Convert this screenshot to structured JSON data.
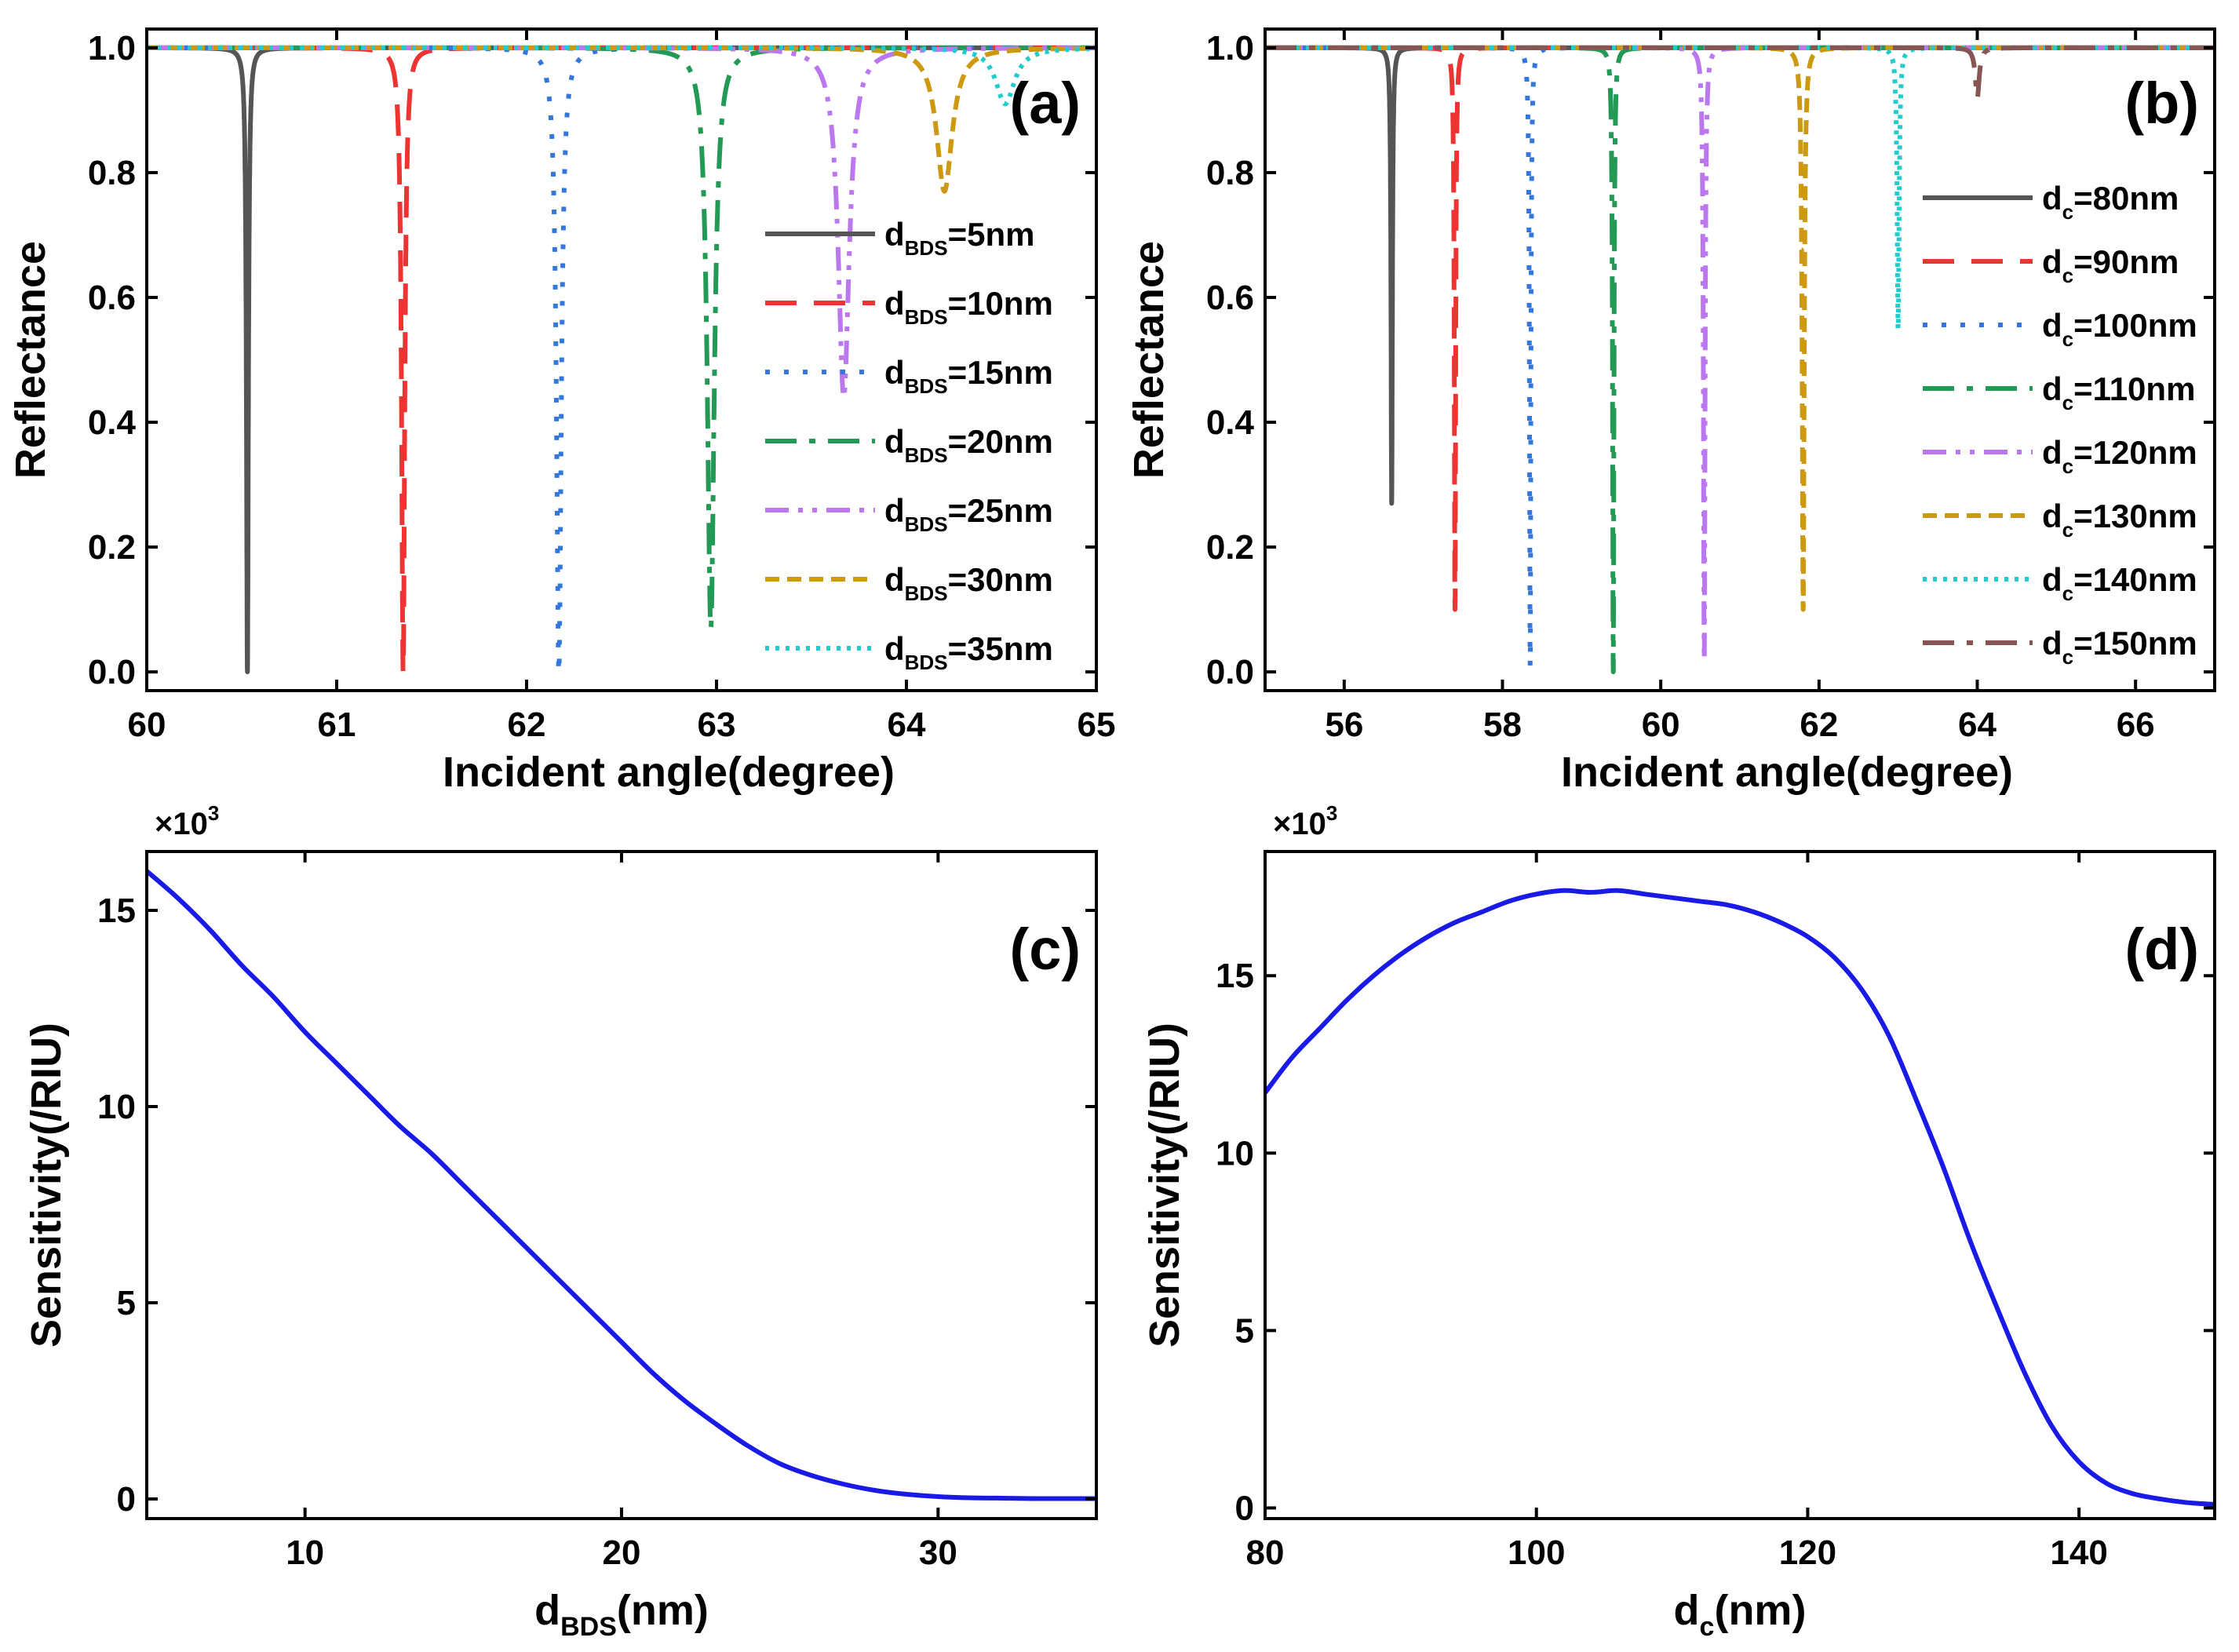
{
  "chart_data": [
    {
      "panel": "a",
      "type": "line",
      "panel_label": "(a)",
      "xlabel": "Incident angle(degree)",
      "ylabel": "Reflectance",
      "xlim": [
        60,
        65
      ],
      "ylim": [
        -0.03,
        1.03
      ],
      "xticks": [
        60,
        61,
        62,
        63,
        64,
        65
      ],
      "yticks": [
        0.0,
        0.2,
        0.4,
        0.6,
        0.8,
        1.0
      ],
      "xtick_labels": [
        "60",
        "61",
        "62",
        "63",
        "64",
        "65"
      ],
      "ytick_labels": [
        "0.0",
        "0.2",
        "0.4",
        "0.6",
        "0.8",
        "1.0"
      ],
      "legend_position": "right",
      "series": [
        {
          "name": "d_BDS=5nm",
          "label_main": "d",
          "label_sub": "BDS",
          "label_rest": "=5nm",
          "color": "#555555",
          "dash": "solid",
          "dip_center": 60.53,
          "dip_min": 0.0,
          "dip_width": 0.006
        },
        {
          "name": "d_BDS=10nm",
          "label_main": "d",
          "label_sub": "BDS",
          "label_rest": "=10nm",
          "color": "#ee3333",
          "dash": "dash",
          "dip_center": 61.35,
          "dip_min": 0.0,
          "dip_width": 0.01
        },
        {
          "name": "d_BDS=15nm",
          "label_main": "d",
          "label_sub": "BDS",
          "label_rest": "=15nm",
          "color": "#3377dd",
          "dash": "dot",
          "dip_center": 62.17,
          "dip_min": 0.0,
          "dip_width": 0.015
        },
        {
          "name": "d_BDS=20nm",
          "label_main": "d",
          "label_sub": "BDS",
          "label_rest": "=20nm",
          "color": "#229955",
          "dash": "dashdot",
          "dip_center": 62.97,
          "dip_min": 0.07,
          "dip_width": 0.022
        },
        {
          "name": "d_BDS=25nm",
          "label_main": "d",
          "label_sub": "BDS",
          "label_rest": "=25nm",
          "color": "#bb77ee",
          "dash": "dashdotdot",
          "dip_center": 63.67,
          "dip_min": 0.44,
          "dip_width": 0.035
        },
        {
          "name": "d_BDS=30nm",
          "label_main": "d",
          "label_sub": "BDS",
          "label_rest": "=30nm",
          "color": "#cc9911",
          "dash": "shortdash",
          "dip_center": 64.2,
          "dip_min": 0.77,
          "dip_width": 0.05
        },
        {
          "name": "d_BDS=35nm",
          "label_main": "d",
          "label_sub": "BDS",
          "label_rest": "=35nm",
          "color": "#22cccc",
          "dash": "shortdot",
          "dip_center": 64.52,
          "dip_min": 0.91,
          "dip_width": 0.06
        }
      ]
    },
    {
      "panel": "b",
      "type": "line",
      "panel_label": "(b)",
      "xlabel": "Incident angle(degree)",
      "ylabel": "Reflectance",
      "xlim": [
        55,
        67
      ],
      "ylim": [
        -0.03,
        1.03
      ],
      "xticks": [
        56,
        58,
        60,
        62,
        64,
        66
      ],
      "yticks": [
        0.0,
        0.2,
        0.4,
        0.6,
        0.8,
        1.0
      ],
      "xtick_labels": [
        "56",
        "58",
        "60",
        "62",
        "64",
        "66"
      ],
      "ytick_labels": [
        "0.0",
        "0.2",
        "0.4",
        "0.6",
        "0.8",
        "1.0"
      ],
      "legend_position": "right",
      "series": [
        {
          "name": "d_c=80nm",
          "label_main": "d",
          "label_sub": "c",
          "label_rest": "=80nm",
          "color": "#555555",
          "dash": "solid",
          "dip_center": 56.6,
          "dip_min": 0.27,
          "dip_width": 0.01
        },
        {
          "name": "d_c=90nm",
          "label_main": "d",
          "label_sub": "c",
          "label_rest": "=90nm",
          "color": "#ee3333",
          "dash": "dash",
          "dip_center": 57.4,
          "dip_min": 0.1,
          "dip_width": 0.01
        },
        {
          "name": "d_c=100nm",
          "label_main": "d",
          "label_sub": "c",
          "label_rest": "=100nm",
          "color": "#3377dd",
          "dash": "dot",
          "dip_center": 58.35,
          "dip_min": 0.01,
          "dip_width": 0.01
        },
        {
          "name": "d_c=110nm",
          "label_main": "d",
          "label_sub": "c",
          "label_rest": "=110nm",
          "color": "#229955",
          "dash": "dashdot",
          "dip_center": 59.4,
          "dip_min": 0.0,
          "dip_width": 0.01
        },
        {
          "name": "d_c=120nm",
          "label_main": "d",
          "label_sub": "c",
          "label_rest": "=120nm",
          "color": "#bb77ee",
          "dash": "dashdotdot",
          "dip_center": 60.55,
          "dip_min": 0.02,
          "dip_width": 0.012
        },
        {
          "name": "d_c=130nm",
          "label_main": "d",
          "label_sub": "c",
          "label_rest": "=130nm",
          "color": "#cc9911",
          "dash": "shortdash",
          "dip_center": 61.8,
          "dip_min": 0.1,
          "dip_width": 0.015
        },
        {
          "name": "d_c=140nm",
          "label_main": "d",
          "label_sub": "c",
          "label_rest": "=140nm",
          "color": "#22cccc",
          "dash": "shortdot",
          "dip_center": 63.0,
          "dip_min": 0.55,
          "dip_width": 0.015
        },
        {
          "name": "d_c=150nm",
          "label_main": "d",
          "label_sub": "c",
          "label_rest": "=150nm",
          "color": "#885555",
          "dash": "dashdot",
          "dip_center": 64.0,
          "dip_min": 0.92,
          "dip_width": 0.03
        }
      ]
    },
    {
      "panel": "c",
      "type": "line",
      "panel_label": "(c)",
      "xlabel_main": "d",
      "xlabel_sub": "BDS",
      "xlabel_rest": "(nm)",
      "ylabel": "Sensitivity(/RIU)",
      "multiplier_main": "×10",
      "multiplier_exp": "3",
      "xlim": [
        5,
        35
      ],
      "ylim": [
        -0.5,
        16.5
      ],
      "xticks": [
        10,
        20,
        30
      ],
      "yticks": [
        0,
        5,
        10,
        15
      ],
      "xtick_labels": [
        "10",
        "20",
        "30"
      ],
      "ytick_labels": [
        "0",
        "5",
        "10",
        "15"
      ],
      "series": [
        {
          "name": "Sensitivity",
          "color": "#1a1ae6",
          "x": [
            5,
            6,
            7,
            8,
            9,
            10,
            11,
            12,
            13,
            14,
            15,
            16,
            17,
            18,
            19,
            20,
            21,
            22,
            23,
            24,
            25,
            26,
            27,
            28,
            29,
            30,
            31,
            32,
            33,
            34,
            35
          ],
          "y": [
            16.0,
            15.3,
            14.5,
            13.6,
            12.8,
            11.9,
            11.1,
            10.3,
            9.5,
            8.8,
            8.0,
            7.2,
            6.4,
            5.6,
            4.8,
            4.0,
            3.2,
            2.5,
            1.9,
            1.35,
            0.9,
            0.6,
            0.38,
            0.22,
            0.12,
            0.06,
            0.03,
            0.02,
            0.01,
            0.01,
            0.01
          ]
        }
      ]
    },
    {
      "panel": "d",
      "type": "line",
      "panel_label": "(d)",
      "xlabel_main": "d",
      "xlabel_sub": "c",
      "xlabel_rest": "(nm)",
      "ylabel": "Sensitivity(/RIU)",
      "multiplier_main": "×10",
      "multiplier_exp": "3",
      "xlim": [
        80,
        150
      ],
      "ylim": [
        -0.3,
        18.5
      ],
      "xticks": [
        80,
        100,
        120,
        140
      ],
      "yticks": [
        0,
        5,
        10,
        15
      ],
      "xtick_labels": [
        "80",
        "100",
        "120",
        "140"
      ],
      "ytick_labels": [
        "0",
        "5",
        "10",
        "15"
      ],
      "series": [
        {
          "name": "Sensitivity",
          "color": "#1a1ae6",
          "x": [
            80,
            82,
            84,
            86,
            88,
            90,
            92,
            94,
            96,
            98,
            100,
            102,
            104,
            106,
            108,
            110,
            112,
            114,
            116,
            118,
            120,
            122,
            124,
            126,
            128,
            130,
            132,
            134,
            136,
            138,
            140,
            142,
            144,
            146,
            148,
            150
          ],
          "y": [
            11.7,
            12.7,
            13.5,
            14.3,
            15.0,
            15.6,
            16.1,
            16.5,
            16.8,
            17.1,
            17.3,
            17.4,
            17.35,
            17.4,
            17.3,
            17.2,
            17.1,
            17.0,
            16.8,
            16.5,
            16.1,
            15.5,
            14.6,
            13.3,
            11.5,
            9.6,
            7.5,
            5.6,
            3.8,
            2.3,
            1.3,
            0.7,
            0.4,
            0.25,
            0.15,
            0.1
          ]
        }
      ]
    }
  ]
}
